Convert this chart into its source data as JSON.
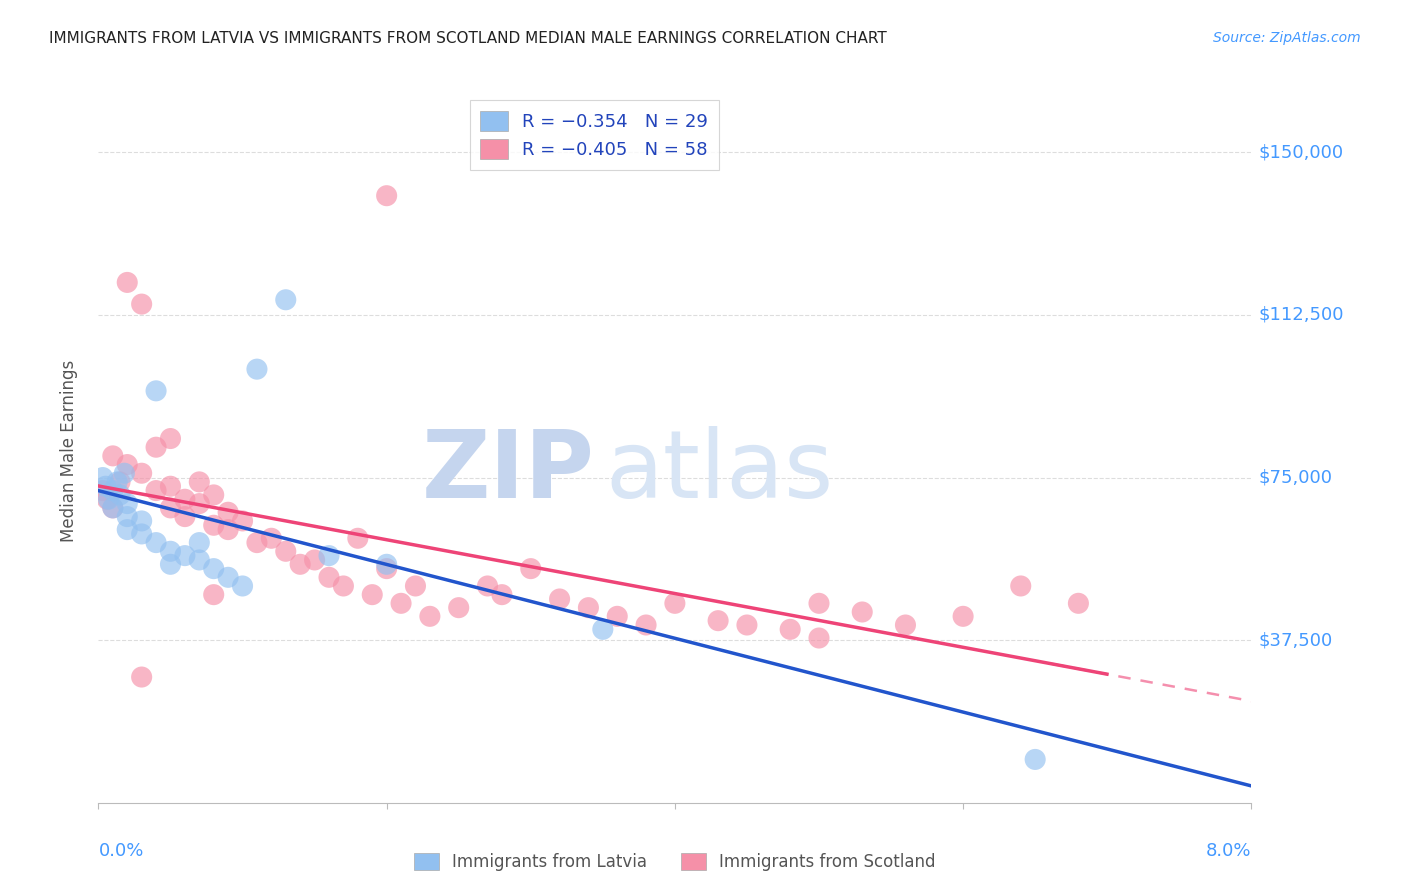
{
  "title": "IMMIGRANTS FROM LATVIA VS IMMIGRANTS FROM SCOTLAND MEDIAN MALE EARNINGS CORRELATION CHART",
  "source": "Source: ZipAtlas.com",
  "ylabel": "Median Male Earnings",
  "ytick_values": [
    37500,
    75000,
    112500,
    150000
  ],
  "ytick_labels": [
    "$37,500",
    "$75,000",
    "$112,500",
    "$150,000"
  ],
  "ymin": 0,
  "ymax": 162500,
  "xmin": 0.0,
  "xmax": 0.08,
  "color_latvia": "#92C0F0",
  "color_scotland": "#F590A8",
  "color_latvia_line": "#2255CC",
  "color_scotland_line": "#EE4477",
  "color_axis_text": "#4499FF",
  "color_title": "#222222",
  "color_source": "#4499FF",
  "color_grid": "#DDDDDD",
  "legend_r_latvia": "R = −0.354",
  "legend_n_latvia": "N = 29",
  "legend_r_scotland": "R = −0.405",
  "legend_n_scotland": "N = 58",
  "legend_color_text": "#2244BB",
  "watermark_zip": "ZIP",
  "watermark_atlas": "atlas",
  "bottom_legend": [
    "Immigrants from Latvia",
    "Immigrants from Scotland"
  ],
  "latvia_x": [
    0.0003,
    0.0005,
    0.0007,
    0.001,
    0.001,
    0.0013,
    0.0015,
    0.0018,
    0.002,
    0.002,
    0.002,
    0.003,
    0.003,
    0.004,
    0.004,
    0.005,
    0.005,
    0.006,
    0.007,
    0.007,
    0.008,
    0.009,
    0.01,
    0.011,
    0.013,
    0.016,
    0.02,
    0.035,
    0.065
  ],
  "latvia_y": [
    75000,
    73000,
    70000,
    72000,
    68000,
    74000,
    71000,
    76000,
    69000,
    66000,
    63000,
    65000,
    62000,
    60000,
    95000,
    58000,
    55000,
    57000,
    56000,
    60000,
    54000,
    52000,
    50000,
    100000,
    116000,
    57000,
    55000,
    40000,
    10000
  ],
  "scotland_x": [
    0.0003,
    0.0006,
    0.001,
    0.001,
    0.0015,
    0.002,
    0.002,
    0.003,
    0.003,
    0.004,
    0.004,
    0.005,
    0.005,
    0.005,
    0.006,
    0.006,
    0.007,
    0.007,
    0.008,
    0.008,
    0.009,
    0.009,
    0.01,
    0.011,
    0.012,
    0.013,
    0.014,
    0.015,
    0.016,
    0.017,
    0.018,
    0.019,
    0.02,
    0.021,
    0.022,
    0.023,
    0.025,
    0.027,
    0.028,
    0.03,
    0.032,
    0.034,
    0.036,
    0.038,
    0.04,
    0.043,
    0.045,
    0.048,
    0.05,
    0.053,
    0.056,
    0.06,
    0.064,
    0.068,
    0.003,
    0.008,
    0.02,
    0.05
  ],
  "scotland_y": [
    72000,
    70000,
    68000,
    80000,
    74000,
    78000,
    120000,
    115000,
    76000,
    82000,
    72000,
    73000,
    68000,
    84000,
    70000,
    66000,
    74000,
    69000,
    64000,
    71000,
    67000,
    63000,
    65000,
    60000,
    61000,
    58000,
    55000,
    56000,
    52000,
    50000,
    61000,
    48000,
    54000,
    46000,
    50000,
    43000,
    45000,
    50000,
    48000,
    54000,
    47000,
    45000,
    43000,
    41000,
    46000,
    42000,
    41000,
    40000,
    46000,
    44000,
    41000,
    43000,
    50000,
    46000,
    29000,
    48000,
    140000,
    38000
  ]
}
